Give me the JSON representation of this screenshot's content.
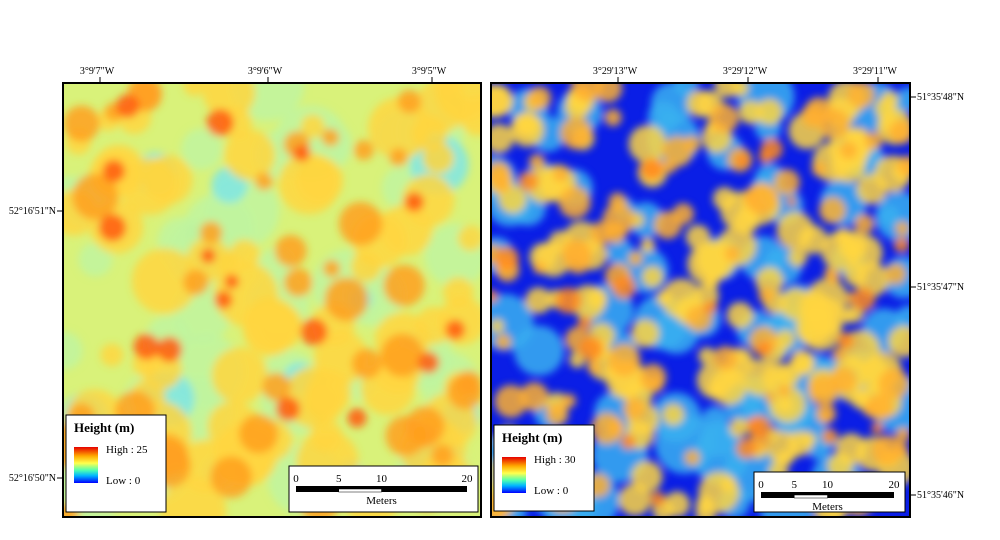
{
  "panels": [
    {
      "top_labels": [
        "3°9'7\"W",
        "3°9'6\"W",
        "3°9'5\"W"
      ],
      "side_labels": [
        "52°16'51\"N",
        "52°16'50\"N"
      ],
      "legend": {
        "title": "Height (m)",
        "high": "High : 25",
        "low": "Low : 0"
      },
      "scale": {
        "ticks": [
          0,
          5,
          10,
          20
        ],
        "unit": "Meters"
      }
    },
    {
      "top_labels": [
        "3°29'13\"W",
        "3°29'12\"W",
        "3°29'11\"W"
      ],
      "side_labels": [
        "51°35'48\"N",
        "51°35'47\"N",
        "51°35'46\"N"
      ],
      "legend": {
        "title": "Height (m)",
        "high": "High : 30",
        "low": "Low : 0"
      },
      "scale": {
        "ticks": [
          0,
          5,
          10,
          20
        ],
        "unit": "Meters"
      }
    }
  ]
}
